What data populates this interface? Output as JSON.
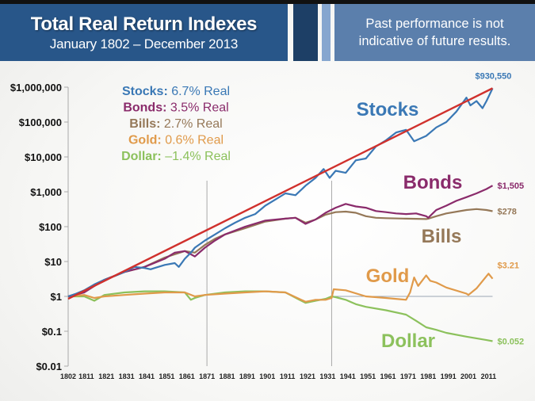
{
  "header": {
    "title": "Total Real Return Indexes",
    "subtitle": "January 1802 – December 2013",
    "disclaimer_line1": "Past performance is not",
    "disclaimer_line2": "indicative of future results."
  },
  "chart_data": {
    "type": "line",
    "title": "Total Real Return Indexes",
    "subtitle": "January 1802 – December 2013",
    "xlabel": "",
    "ylabel": "",
    "yscale": "log",
    "ylim": [
      0.01,
      1000000
    ],
    "xlim": [
      1802,
      2014
    ],
    "y_ticks": [
      {
        "value": 1000000,
        "label": "$1,000,000"
      },
      {
        "value": 100000,
        "label": "$100,000"
      },
      {
        "value": 10000,
        "label": "$10,000"
      },
      {
        "value": 1000,
        "label": "$1,000"
      },
      {
        "value": 100,
        "label": "$100"
      },
      {
        "value": 10,
        "label": "$10"
      },
      {
        "value": 1,
        "label": "$1"
      },
      {
        "value": 0.1,
        "label": "$0.1"
      },
      {
        "value": 0.01,
        "label": "$0.01"
      }
    ],
    "x_ticks": [
      "1802",
      "1811",
      "1821",
      "1831",
      "1841",
      "1851",
      "1861",
      "1871",
      "1881",
      "1891",
      "1901",
      "1911",
      "1921",
      "1931",
      "1941",
      "1951",
      "1961",
      "1971",
      "1981",
      "1991",
      "2001",
      "2011"
    ],
    "grid": false,
    "vertical_markers": [
      1871,
      1933
    ],
    "reference_line": {
      "name": "Trend",
      "color": "#d0312d",
      "x": [
        1802,
        2013
      ],
      "y": [
        0.85,
        930550
      ]
    },
    "legend": {
      "placement": "top-left",
      "entries": [
        {
          "name": "Stocks:",
          "text": " 6.7% Real",
          "color": "#3a78b5"
        },
        {
          "name": "Bonds:",
          "text": " 3.5% Real",
          "color": "#8a2b6b"
        },
        {
          "name": "Bills:",
          "text": " 2.7% Real",
          "color": "#957858"
        },
        {
          "name": "Gold:",
          "text": " 0.6% Real",
          "color": "#e09a4a"
        },
        {
          "name": "Dollar:",
          "text": " –1.4% Real",
          "color": "#8cc15c"
        }
      ]
    },
    "series": [
      {
        "name": "Stocks",
        "color": "#3a78b5",
        "end_label": "$930,550",
        "x": [
          1802,
          1806,
          1810,
          1815,
          1820,
          1825,
          1830,
          1835,
          1840,
          1843,
          1845,
          1850,
          1855,
          1857,
          1860,
          1863,
          1865,
          1870,
          1875,
          1880,
          1885,
          1890,
          1895,
          1900,
          1905,
          1910,
          1915,
          1920,
          1925,
          1929,
          1932,
          1935,
          1940,
          1945,
          1950,
          1955,
          1960,
          1965,
          1970,
          1974,
          1980,
          1985,
          1990,
          1995,
          2000,
          2002,
          2005,
          2008,
          2010,
          2013
        ],
        "y": [
          1,
          1.2,
          1.5,
          2.2,
          3,
          3.8,
          5,
          7,
          6.5,
          6,
          6.5,
          8,
          9,
          7,
          12,
          18,
          25,
          40,
          60,
          90,
          130,
          180,
          230,
          400,
          600,
          900,
          800,
          1500,
          2500,
          4500,
          2500,
          4000,
          3500,
          8000,
          9000,
          20000,
          30000,
          50000,
          60000,
          28000,
          40000,
          70000,
          100000,
          200000,
          500000,
          300000,
          400000,
          250000,
          400000,
          930550
        ]
      },
      {
        "name": "Bonds",
        "color": "#8a2b6b",
        "end_label": "$1,505",
        "x": [
          1802,
          1810,
          1820,
          1830,
          1840,
          1850,
          1855,
          1860,
          1865,
          1870,
          1875,
          1880,
          1890,
          1900,
          1910,
          1915,
          1920,
          1925,
          1930,
          1935,
          1940,
          1945,
          1950,
          1955,
          1960,
          1965,
          1970,
          1975,
          1980,
          1981,
          1985,
          1990,
          1995,
          2000,
          2005,
          2010,
          2013
        ],
        "y": [
          1,
          1.3,
          3,
          5,
          7,
          12,
          18,
          20,
          14,
          25,
          40,
          60,
          100,
          150,
          170,
          180,
          120,
          160,
          250,
          350,
          450,
          380,
          350,
          280,
          260,
          240,
          230,
          240,
          200,
          180,
          300,
          400,
          550,
          700,
          900,
          1200,
          1505
        ]
      },
      {
        "name": "Bills",
        "color": "#957858",
        "end_label": "$278",
        "x": [
          1802,
          1810,
          1820,
          1830,
          1840,
          1850,
          1860,
          1865,
          1870,
          1875,
          1880,
          1890,
          1900,
          1910,
          1915,
          1920,
          1925,
          1930,
          1935,
          1940,
          1945,
          1950,
          1955,
          1960,
          1970,
          1980,
          1981,
          1985,
          1990,
          2000,
          2005,
          2010,
          2013
        ],
        "y": [
          1,
          1.4,
          3,
          5,
          7,
          13,
          20,
          18,
          30,
          45,
          60,
          90,
          140,
          170,
          180,
          130,
          160,
          220,
          260,
          270,
          250,
          200,
          180,
          175,
          170,
          165,
          170,
          200,
          240,
          300,
          320,
          300,
          278
        ]
      },
      {
        "name": "Gold",
        "color": "#e09a4a",
        "end_label": "$3.21",
        "x": [
          1802,
          1810,
          1815,
          1820,
          1830,
          1840,
          1850,
          1860,
          1865,
          1870,
          1880,
          1890,
          1900,
          1910,
          1920,
          1925,
          1930,
          1933,
          1934,
          1940,
          1950,
          1960,
          1970,
          1972,
          1974,
          1976,
          1980,
          1982,
          1985,
          1990,
          2000,
          2001,
          2005,
          2011,
          2013
        ],
        "y": [
          1,
          1.1,
          0.9,
          1,
          1.1,
          1.2,
          1.3,
          1.3,
          1,
          1.1,
          1.2,
          1.3,
          1.4,
          1.3,
          0.7,
          0.8,
          0.8,
          0.9,
          1.6,
          1.5,
          1,
          0.9,
          0.8,
          1.3,
          3.5,
          2,
          4,
          2.8,
          2.5,
          1.8,
          1.2,
          1.1,
          1.7,
          4.5,
          3.21
        ]
      },
      {
        "name": "Dollar",
        "color": "#8cc15c",
        "end_label": "$0.052",
        "x": [
          1802,
          1810,
          1815,
          1820,
          1830,
          1840,
          1850,
          1860,
          1863,
          1865,
          1870,
          1880,
          1890,
          1900,
          1910,
          1917,
          1920,
          1925,
          1930,
          1933,
          1935,
          1940,
          1945,
          1950,
          1960,
          1970,
          1975,
          1980,
          1985,
          1990,
          2000,
          2010,
          2013
        ],
        "y": [
          1,
          1,
          0.75,
          1.1,
          1.3,
          1.4,
          1.4,
          1.3,
          0.8,
          0.9,
          1.1,
          1.3,
          1.4,
          1.4,
          1.3,
          0.8,
          0.65,
          0.75,
          0.85,
          1,
          0.95,
          0.8,
          0.6,
          0.5,
          0.4,
          0.3,
          0.2,
          0.13,
          0.11,
          0.09,
          0.07,
          0.056,
          0.052
        ]
      }
    ]
  }
}
